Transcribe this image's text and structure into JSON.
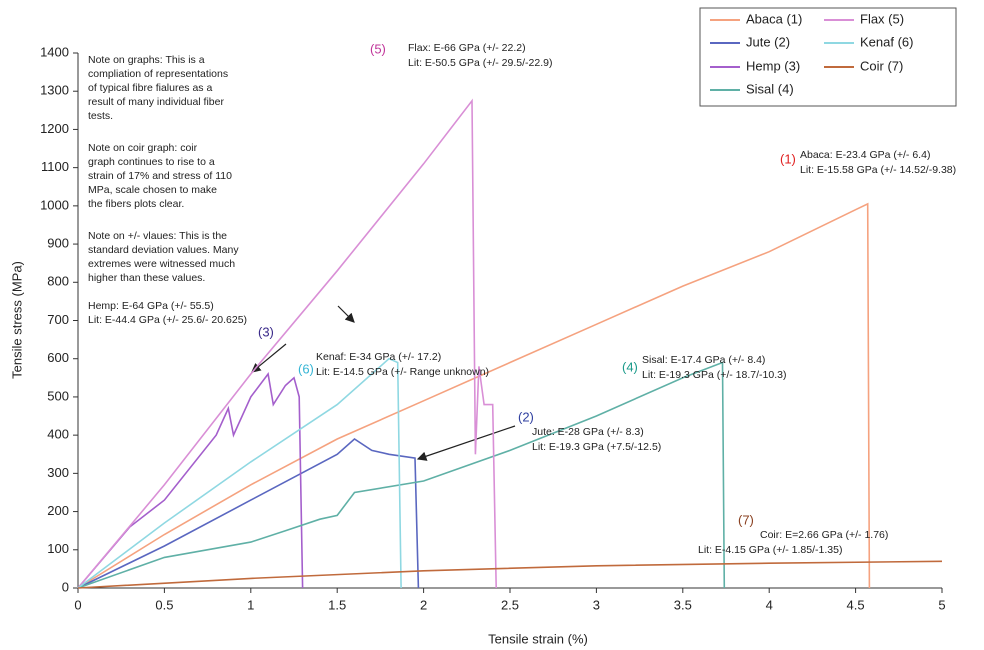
{
  "chart_data": {
    "type": "line",
    "xlabel": "Tensile strain (%)",
    "ylabel": "Tensile stress (MPa)",
    "xlim": [
      0,
      5
    ],
    "ylim": [
      0,
      1400
    ],
    "xticks": [
      0,
      0.5,
      1,
      1.5,
      2,
      2.5,
      3,
      3.5,
      4,
      4.5,
      5
    ],
    "yticks": [
      0,
      100,
      200,
      300,
      400,
      500,
      600,
      700,
      800,
      900,
      1000,
      1100,
      1200,
      1300,
      1400
    ],
    "legend": "upper right",
    "series": [
      {
        "name": "Abaca (1)",
        "color": "#f5a27f",
        "x": [
          0,
          0.5,
          1,
          1.5,
          2,
          2.5,
          3,
          3.5,
          4,
          4.5,
          4.57,
          4.58
        ],
        "values": [
          0,
          140,
          270,
          390,
          490,
          590,
          690,
          790,
          880,
          990,
          1005,
          0
        ]
      },
      {
        "name": "Jute (2)",
        "color": "#5a67c0",
        "x": [
          0,
          0.5,
          1,
          1.5,
          1.6,
          1.7,
          1.8,
          1.95,
          1.97
        ],
        "values": [
          0,
          110,
          230,
          350,
          390,
          360,
          350,
          340,
          0
        ]
      },
      {
        "name": "Hemp (3)",
        "color": "#a45fcc",
        "x": [
          0,
          0.3,
          0.5,
          0.8,
          0.87,
          0.9,
          1.0,
          1.1,
          1.13,
          1.2,
          1.25,
          1.28,
          1.3
        ],
        "values": [
          0,
          160,
          230,
          400,
          470,
          400,
          500,
          560,
          480,
          530,
          550,
          500,
          0
        ]
      },
      {
        "name": "Sisal (4)",
        "color": "#5fb0a6",
        "x": [
          0,
          0.5,
          1,
          1.2,
          1.4,
          1.5,
          1.6,
          2,
          2.5,
          3,
          3.5,
          3.73,
          3.74
        ],
        "values": [
          0,
          80,
          120,
          150,
          180,
          190,
          250,
          280,
          360,
          450,
          550,
          590,
          0
        ]
      },
      {
        "name": "Flax (5)",
        "color": "#d98fd6",
        "x": [
          0,
          0.5,
          1,
          1.5,
          2,
          2.28,
          2.3,
          2.32,
          2.35,
          2.4,
          2.42
        ],
        "values": [
          0,
          270,
          560,
          830,
          1110,
          1275,
          350,
          580,
          480,
          480,
          0
        ]
      },
      {
        "name": "Kenaf (6)",
        "color": "#8fd8e2",
        "x": [
          0,
          0.5,
          1,
          1.5,
          1.8,
          1.85,
          1.87
        ],
        "values": [
          0,
          170,
          330,
          480,
          600,
          590,
          0
        ]
      },
      {
        "name": "Coir (7)",
        "color": "#c06a3c",
        "x": [
          0,
          1,
          2,
          3,
          4,
          5
        ],
        "values": [
          0,
          25,
          45,
          58,
          65,
          70
        ]
      }
    ],
    "notes": [
      [
        "Note on graphs: This is a",
        "compliation of representations",
        "of typical fibre fialures as a",
        "result of many individual fiber",
        "tests."
      ],
      [
        "Note on coir graph: coir",
        "graph continues to rise to a",
        "strain of 17% and stress of 110",
        "MPa, scale chosen to make",
        "the fibers plots clear."
      ],
      [
        "Note on +/- vlaues: This is the",
        "standard deviation values. Many",
        "extremes were witnessed much",
        "higher than these values."
      ],
      [
        "Hemp: E-64 GPa (+/- 55.5)",
        "Lit: E-44.4 GPa (+/- 25.6/- 20.625)"
      ]
    ],
    "annotations": [
      {
        "label": "(5)",
        "label_color": "#c0359a",
        "lines": [
          "Flax: E-66 GPa (+/- 22.2)",
          "Lit: E-50.5 GPa (+/- 29.5/-22.9)"
        ]
      },
      {
        "label": "(1)",
        "label_color": "#e02020",
        "lines": [
          "Abaca: E-23.4 GPa (+/- 6.4)",
          "Lit: E-15.58 GPa (+/- 14.52/-9.38)"
        ]
      },
      {
        "label": "(3)",
        "label_color": "#3a2a8a",
        "lines": []
      },
      {
        "label": "(6)",
        "label_color": "#35b5d5",
        "lines": [
          "Kenaf: E-34 GPa (+/- 17.2)",
          "Lit: E-14.5 GPa (+/- Range unknown)"
        ]
      },
      {
        "label": "(4)",
        "label_color": "#1a9a8a",
        "lines": [
          "Sisal: E-17.4 GPa (+/- 8.4)",
          "Lit: E-19.3 GPa (+/- 18.7/-10.3)"
        ]
      },
      {
        "label": "(2)",
        "label_color": "#3040a0",
        "lines": [
          "Jute: E-28 GPa (+/- 8.3)",
          "Lit: E-19.3 GPa (+7.5/-12.5)"
        ]
      },
      {
        "label": "(7)",
        "label_color": "#8a4020",
        "lines": [
          "Coir: E=2.66 GPa (+/- 1.76)",
          "Lit: E-4.15 GPa (+/- 1.85/-1.35)"
        ]
      }
    ]
  }
}
